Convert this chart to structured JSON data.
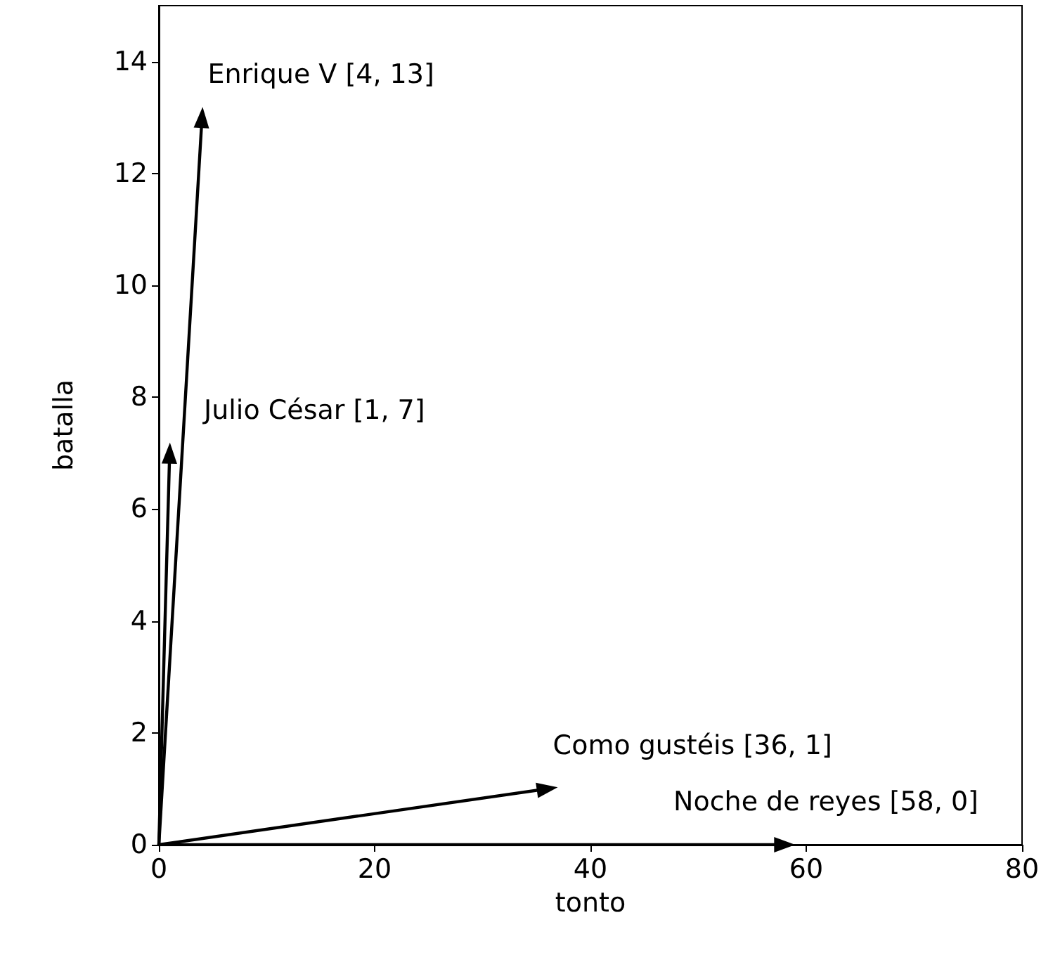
{
  "chart_data": {
    "type": "line",
    "xlabel": "tonto",
    "ylabel": "batalla",
    "xlim": [
      0,
      80
    ],
    "xticks": [
      0,
      20,
      40,
      60,
      80
    ],
    "ylim": [
      0,
      15
    ],
    "yticks": [
      0,
      2,
      4,
      6,
      8,
      10,
      12,
      14
    ],
    "grid": false,
    "marker": "triangle",
    "series": [
      {
        "x": [
          0,
          4
        ],
        "values": [
          0,
          13
        ],
        "color": "#000000"
      },
      {
        "x": [
          0,
          1
        ],
        "values": [
          0,
          7
        ],
        "color": "#000000"
      },
      {
        "x": [
          0,
          36
        ],
        "values": [
          0,
          1
        ],
        "color": "#000000"
      },
      {
        "x": [
          0,
          58
        ],
        "values": [
          0,
          0
        ],
        "color": "#000000"
      }
    ],
    "annotations": [
      {
        "text": "Enrique V [4, 13]",
        "x": 4,
        "y": 13
      },
      {
        "text": "Julio César [1, 7]",
        "x": 1,
        "y": 7
      },
      {
        "text": "Como gustéis [36, 1]",
        "x": 36,
        "y": 1
      },
      {
        "text": "Noche de reyes [58, 0]",
        "x": 58,
        "y": 0
      }
    ]
  }
}
